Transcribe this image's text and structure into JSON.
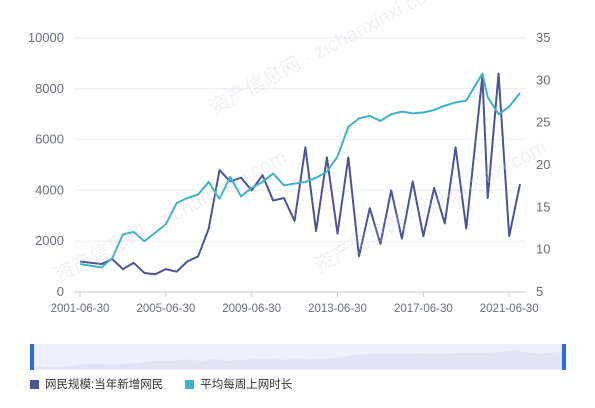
{
  "chart_data": {
    "type": "line",
    "title": "",
    "x_ticks": [
      "2001-06-30",
      "2005-06-30",
      "2009-06-30",
      "2013-06-30",
      "2017-06-30",
      "2021-06-30"
    ],
    "y_left": {
      "min": 0,
      "max": 10000,
      "ticks": [
        0,
        2000,
        4000,
        6000,
        8000,
        10000
      ]
    },
    "y_right": {
      "min": 5,
      "max": 35,
      "ticks": [
        5,
        10,
        15,
        20,
        25,
        30,
        35
      ]
    },
    "series": [
      {
        "name": "网民规模:当年新增网民",
        "axis": "left",
        "color": "#4e5493",
        "x": [
          "2001-06-30",
          "2001-12-31",
          "2002-06-30",
          "2002-12-31",
          "2003-06-30",
          "2003-12-31",
          "2004-06-30",
          "2004-12-31",
          "2005-06-30",
          "2005-12-31",
          "2006-06-30",
          "2006-12-31",
          "2007-06-30",
          "2007-12-31",
          "2008-06-30",
          "2008-12-31",
          "2009-06-30",
          "2009-12-31",
          "2010-06-30",
          "2010-12-31",
          "2011-06-30",
          "2011-12-31",
          "2012-06-30",
          "2012-12-31",
          "2013-06-30",
          "2013-12-31",
          "2014-06-30",
          "2014-12-31",
          "2015-06-30",
          "2015-12-31",
          "2016-06-30",
          "2016-12-31",
          "2017-06-30",
          "2017-12-31",
          "2018-06-30",
          "2018-12-31",
          "2019-06-30",
          "2020-03-31",
          "2020-06-30",
          "2020-12-31",
          "2021-06-30",
          "2021-12-31"
        ],
        "values": [
          1200,
          1150,
          1100,
          1300,
          900,
          1150,
          750,
          700,
          900,
          800,
          1200,
          1400,
          2500,
          4800,
          4350,
          4500,
          4000,
          4600,
          3600,
          3700,
          2800,
          5700,
          2400,
          5300,
          2300,
          5300,
          1400,
          3300,
          1900,
          4000,
          2100,
          4350,
          2200,
          4100,
          2700,
          5700,
          2500,
          8500,
          3700,
          8600,
          2200,
          4250
        ]
      },
      {
        "name": "平均每周上网时长",
        "axis": "right",
        "color": "#3eb3c7",
        "x": [
          "2001-06-30",
          "2001-12-31",
          "2002-06-30",
          "2002-12-31",
          "2003-06-30",
          "2003-12-31",
          "2004-06-30",
          "2004-12-31",
          "2005-06-30",
          "2005-12-31",
          "2006-06-30",
          "2006-12-31",
          "2007-06-30",
          "2007-12-31",
          "2008-06-30",
          "2008-12-31",
          "2009-06-30",
          "2009-12-31",
          "2010-06-30",
          "2010-12-31",
          "2011-06-30",
          "2011-12-31",
          "2012-06-30",
          "2012-12-31",
          "2013-06-30",
          "2013-12-31",
          "2014-06-30",
          "2014-12-31",
          "2015-06-30",
          "2015-12-31",
          "2016-06-30",
          "2016-12-31",
          "2017-06-30",
          "2017-12-31",
          "2018-06-30",
          "2018-12-31",
          "2019-06-30",
          "2020-03-31",
          "2020-06-30",
          "2020-12-31",
          "2021-06-30",
          "2021-12-31"
        ],
        "values": [
          8.3,
          8.1,
          7.9,
          9.0,
          11.8,
          12.1,
          11.0,
          12.0,
          13.0,
          15.5,
          16.1,
          16.5,
          18.0,
          16.0,
          18.6,
          16.3,
          17.3,
          18.0,
          19.0,
          17.6,
          17.8,
          18.0,
          18.5,
          19.2,
          21.0,
          24.5,
          25.5,
          25.8,
          25.2,
          26.0,
          26.3,
          26.1,
          26.2,
          26.5,
          27.0,
          27.4,
          27.6,
          30.8,
          28.0,
          26.0,
          26.9,
          28.5
        ]
      }
    ],
    "legend_position": "bottom-left"
  }
}
